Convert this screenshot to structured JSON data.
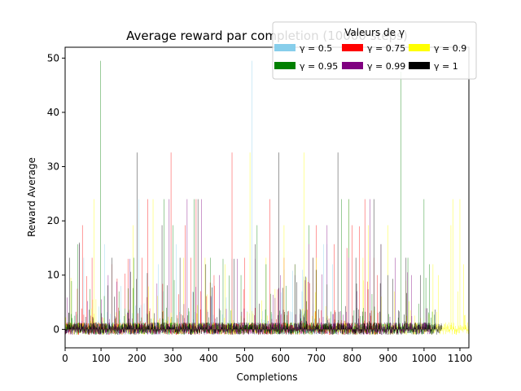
{
  "chart_data": {
    "type": "bar",
    "title": "Average reward par completion (10000 steps)",
    "xlabel": "Completions",
    "ylabel": "Reward Average",
    "xlim": [
      0,
      1125
    ],
    "ylim": [
      -3.4,
      52
    ],
    "xticks": [
      0,
      100,
      200,
      300,
      400,
      500,
      600,
      700,
      800,
      900,
      1000,
      1100
    ],
    "yticks": [
      0,
      10,
      20,
      30,
      40,
      50
    ],
    "grid": false,
    "legend": {
      "title": "Valeurs de γ",
      "placement": "top-right",
      "columns": 3
    },
    "series": [
      {
        "name": "γ = 0.5",
        "color": "#87ceeb",
        "length": 760,
        "seed": 11,
        "spikes": [
          [
            52,
            13.2
          ],
          [
            110,
            15.7
          ],
          [
            155,
            8
          ],
          [
            205,
            24
          ],
          [
            260,
            12
          ],
          [
            310,
            15.7
          ],
          [
            355,
            7
          ],
          [
            410,
            8.5
          ],
          [
            465,
            13
          ],
          [
            520,
            49.5
          ],
          [
            560,
            12
          ],
          [
            610,
            11
          ],
          [
            660,
            7
          ],
          [
            700,
            8.5
          ],
          [
            720,
            15.7
          ],
          [
            730,
            15.7
          ],
          [
            745,
            12
          ]
        ]
      },
      {
        "name": "γ = 0.75",
        "color": "#ff0000",
        "length": 880,
        "seed": 23,
        "spikes": [
          [
            48,
            19.2
          ],
          [
            75,
            13.2
          ],
          [
            130,
            12
          ],
          [
            175,
            13
          ],
          [
            215,
            13.2
          ],
          [
            230,
            24
          ],
          [
            295,
            32.6
          ],
          [
            335,
            19.2
          ],
          [
            350,
            13.2
          ],
          [
            365,
            24
          ],
          [
            415,
            10
          ],
          [
            465,
            32.6
          ],
          [
            500,
            13.2
          ],
          [
            570,
            24
          ],
          [
            610,
            13.2
          ],
          [
            640,
            12
          ],
          [
            690,
            13.2
          ],
          [
            700,
            19.2
          ],
          [
            750,
            15.7
          ],
          [
            785,
            15
          ],
          [
            800,
            19.2
          ],
          [
            820,
            19
          ],
          [
            835,
            24
          ],
          [
            860,
            13.2
          ],
          [
            870,
            10
          ]
        ]
      },
      {
        "name": "γ = 0.9",
        "color": "#ffff00",
        "length": 1125,
        "seed": 37,
        "spikes": [
          [
            80,
            24
          ],
          [
            190,
            19.2
          ],
          [
            245,
            24
          ],
          [
            330,
            13.2
          ],
          [
            390,
            13.2
          ],
          [
            445,
            12
          ],
          [
            515,
            32.6
          ],
          [
            560,
            13.2
          ],
          [
            610,
            19.2
          ],
          [
            665,
            32.6
          ],
          [
            700,
            13.2
          ],
          [
            790,
            24
          ],
          [
            830,
            13.2
          ],
          [
            845,
            19.2
          ],
          [
            900,
            19.2
          ],
          [
            950,
            9
          ],
          [
            1025,
            12
          ],
          [
            1040,
            10
          ],
          [
            1075,
            19.2
          ],
          [
            1080,
            24
          ],
          [
            1095,
            7
          ],
          [
            1100,
            24
          ],
          [
            1110,
            12
          ]
        ]
      },
      {
        "name": "γ = 0.95",
        "color": "#008000",
        "length": 1030,
        "seed": 53,
        "spikes": [
          [
            35,
            15.7
          ],
          [
            98,
            49.5
          ],
          [
            150,
            7
          ],
          [
            192,
            13.2
          ],
          [
            275,
            24
          ],
          [
            300,
            19.2
          ],
          [
            360,
            24
          ],
          [
            405,
            13.2
          ],
          [
            440,
            13
          ],
          [
            490,
            10
          ],
          [
            535,
            19.2
          ],
          [
            560,
            12
          ],
          [
            640,
            12
          ],
          [
            680,
            19.2
          ],
          [
            770,
            24
          ],
          [
            790,
            24
          ],
          [
            880,
            15.7
          ],
          [
            935,
            47.5
          ],
          [
            955,
            13.2
          ],
          [
            1000,
            24
          ],
          [
            1015,
            12
          ]
        ]
      },
      {
        "name": "γ = 0.99",
        "color": "#800080",
        "length": 1020,
        "seed": 71,
        "spikes": [
          [
            40,
            15.7
          ],
          [
            120,
            10
          ],
          [
            180,
            13
          ],
          [
            290,
            24
          ],
          [
            340,
            24
          ],
          [
            380,
            24
          ],
          [
            430,
            10
          ],
          [
            480,
            13
          ],
          [
            530,
            13
          ],
          [
            600,
            10
          ],
          [
            680,
            15.7
          ],
          [
            730,
            19.2
          ],
          [
            790,
            13.2
          ],
          [
            850,
            24
          ],
          [
            880,
            15.7
          ],
          [
            920,
            13.2
          ],
          [
            965,
            10
          ]
        ]
      },
      {
        "name": "γ = 1",
        "color": "#000000",
        "length": 1050,
        "seed": 89,
        "spikes": [
          [
            12,
            13.2
          ],
          [
            40,
            16
          ],
          [
            130,
            13.2
          ],
          [
            200,
            32.6
          ],
          [
            270,
            19.2
          ],
          [
            320,
            13.2
          ],
          [
            370,
            24
          ],
          [
            392,
            12
          ],
          [
            470,
            13
          ],
          [
            530,
            15.7
          ],
          [
            595,
            32.6
          ],
          [
            640,
            10
          ],
          [
            690,
            13.2
          ],
          [
            760,
            32.6
          ],
          [
            810,
            13.2
          ],
          [
            860,
            24
          ],
          [
            900,
            10
          ],
          [
            950,
            13.2
          ],
          [
            990,
            10
          ]
        ]
      }
    ]
  }
}
